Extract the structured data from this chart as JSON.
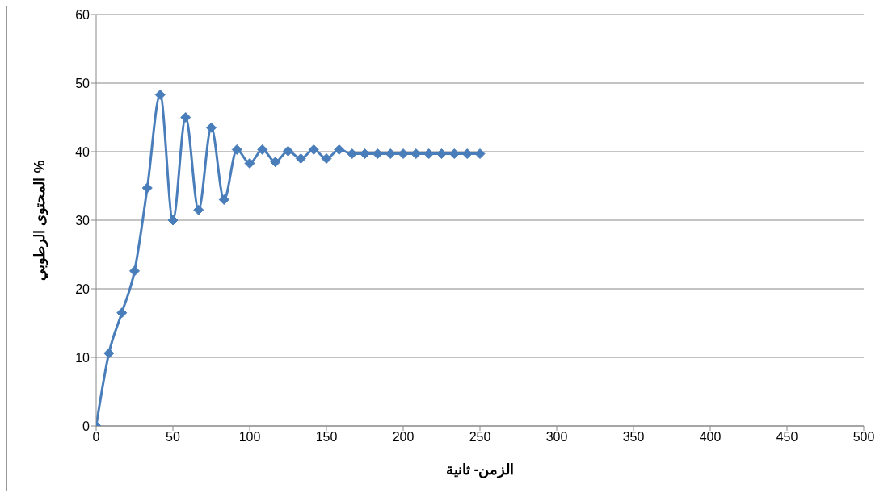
{
  "chart_data": {
    "type": "line",
    "xlabel": "الزمن- ثانية",
    "ylabel": "المحتوى الرطوبي %",
    "x": [
      0,
      8.3,
      16.7,
      25,
      33.3,
      41.7,
      50,
      58.3,
      66.7,
      75,
      83.3,
      91.7,
      100,
      108.3,
      116.7,
      125,
      133.3,
      141.7,
      150,
      158.3,
      166.7,
      175,
      183.3,
      191.7,
      200,
      208.3,
      216.7,
      225,
      233.3,
      241.7,
      250
    ],
    "series": [
      {
        "color": "#4a7ebb",
        "values": [
          0,
          10.6,
          16.5,
          22.6,
          34.7,
          48.3,
          30,
          45,
          31.5,
          43.5,
          33,
          40.3,
          38.3,
          40.3,
          38.5,
          40.1,
          39,
          40.3,
          39,
          40.3,
          39.7,
          39.7,
          39.7,
          39.7,
          39.7,
          39.7,
          39.7,
          39.7,
          39.7,
          39.7,
          39.7
        ]
      }
    ],
    "xlim": [
      0,
      500
    ],
    "xticks": [
      0,
      50,
      100,
      150,
      200,
      250,
      300,
      350,
      400,
      450,
      500
    ],
    "ylim": [
      0,
      60
    ],
    "yticks": [
      0,
      10,
      20,
      30,
      40,
      50,
      60
    ],
    "grid": "y",
    "legend": false,
    "marker": "diamond",
    "line_style": "solid"
  }
}
